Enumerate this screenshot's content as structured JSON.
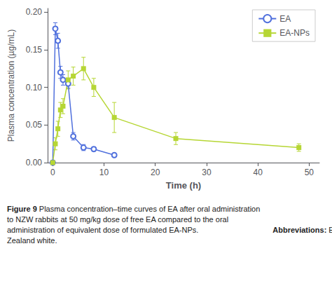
{
  "chart_data": {
    "type": "line",
    "xlabel": "Time (h)",
    "ylabel": "Plasma concentration (µg/mL)",
    "series": [
      {
        "name": "EA",
        "marker": "circle",
        "line_style": "solid",
        "x": [
          0,
          0.5,
          1,
          1.5,
          2,
          3,
          4,
          6,
          8,
          12
        ],
        "values": [
          0.0,
          0.178,
          0.162,
          0.12,
          0.11,
          0.105,
          0.035,
          0.02,
          0.018,
          0.01
        ],
        "errors": [
          0.0,
          0.008,
          0.01,
          0.008,
          0.007,
          0.006,
          0.005,
          0.004,
          0.003,
          0.002
        ]
      },
      {
        "name": "EA-NPs",
        "marker": "square",
        "line_style": "solid",
        "x": [
          0,
          0.5,
          1,
          1.5,
          2,
          3,
          4,
          6,
          8,
          12,
          24,
          48
        ],
        "values": [
          0.0,
          0.025,
          0.045,
          0.07,
          0.075,
          0.11,
          0.115,
          0.125,
          0.1,
          0.06,
          0.032,
          0.02
        ],
        "errors": [
          0.0,
          0.008,
          0.01,
          0.01,
          0.01,
          0.012,
          0.012,
          0.015,
          0.012,
          0.02,
          0.008,
          0.005
        ]
      }
    ],
    "xlim": [
      -1,
      52
    ],
    "ylim": [
      0.0,
      0.205
    ],
    "xticks": [
      0,
      10,
      20,
      30,
      40,
      50
    ],
    "yticks": [
      {
        "value": 0.0,
        "label": "0.00"
      },
      {
        "value": 0.05,
        "label": "0.05"
      },
      {
        "value": 0.1,
        "label": "0.10"
      },
      {
        "value": 0.15,
        "label": "0.15"
      },
      {
        "value": 0.2,
        "label": "0.20"
      }
    ],
    "grid": false,
    "legend": "upper right",
    "annotations": [
      {
        "label": "Figure 9",
        "text": "Plasma concentration–time curves of EA after oral administration to NZW rabbits at 50 mg/kg dose of free EA compared to the oral administration of equivalent dose of formulated EA-NPs."
      },
      {
        "label": "Abbreviations:",
        "text": "EA, ellagic acid; EA-NPs, EA-loaded nanoparticles; NZW, New Zealand white."
      }
    ]
  }
}
